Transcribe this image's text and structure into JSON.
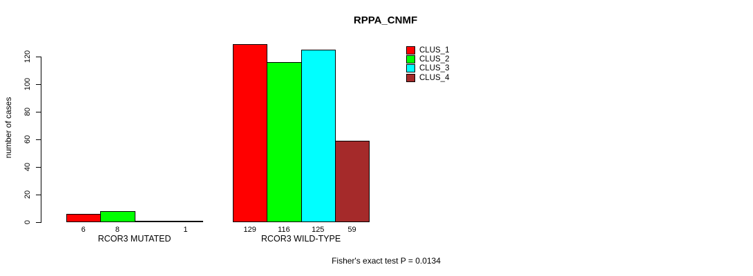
{
  "title": "RPPA_CNMF",
  "footer": "Fisher's exact test P = 0.0134",
  "colors": {
    "clus_1": "#FF0000",
    "clus_2": "#00FF00",
    "clus_3": "#00FFFF",
    "clus_4": "#A52A2A",
    "axis": "#000000",
    "background": "#FFFFFF"
  },
  "chart_data": {
    "type": "bar",
    "title": "RPPA_CNMF",
    "xlabel": "",
    "ylabel": "number of cases",
    "categories": [
      "RCOR3 MUTATED",
      "RCOR3 WILD-TYPE"
    ],
    "series": [
      {
        "name": "CLUS_1",
        "color": "#FF0000",
        "values": [
          6,
          129
        ]
      },
      {
        "name": "CLUS_2",
        "color": "#00FF00",
        "values": [
          8,
          116
        ]
      },
      {
        "name": "CLUS_3",
        "color": "#00FFFF",
        "values": [
          0,
          125
        ]
      },
      {
        "name": "CLUS_4",
        "color": "#A52A2A",
        "values": [
          1,
          59
        ]
      }
    ],
    "bar_value_labels": {
      "RCOR3 MUTATED": [
        "6",
        "8",
        "",
        "1"
      ],
      "RCOR3 WILD-TYPE": [
        "129",
        "116",
        "125",
        "59"
      ]
    },
    "yticks": [
      0,
      20,
      40,
      60,
      80,
      100,
      120
    ],
    "ylim": [
      0,
      130
    ],
    "grid": false,
    "legend_position": "right",
    "legend_entries": [
      "CLUS_1",
      "CLUS_2",
      "CLUS_3",
      "CLUS_4"
    ],
    "annotation": "Fisher's exact test P = 0.0134"
  }
}
